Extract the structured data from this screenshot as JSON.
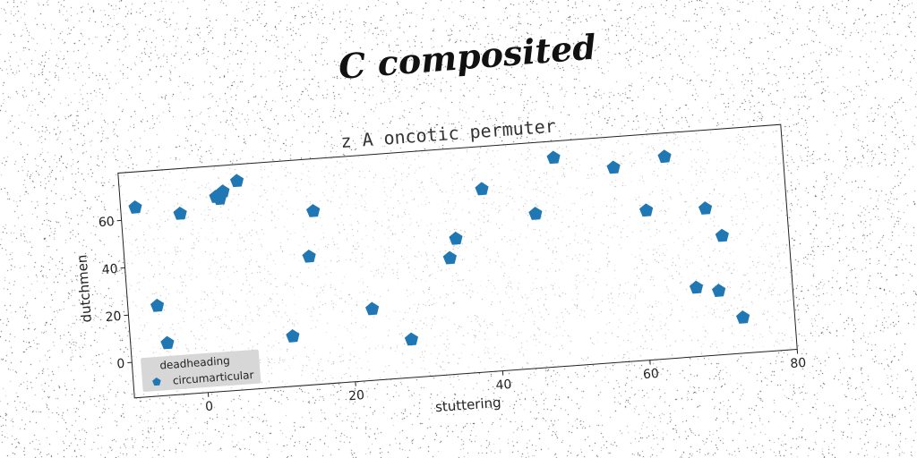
{
  "suptitle": "C composited",
  "chart_data": {
    "type": "scatter",
    "title": "z A oncotic permuter",
    "xlabel": "stuttering",
    "ylabel": "dutchmen",
    "xlim": [
      -10,
      80
    ],
    "ylim": [
      -15,
      80
    ],
    "xticks": [
      0,
      20,
      40,
      60,
      80
    ],
    "yticks": [
      0,
      20,
      40,
      60
    ],
    "grid": false,
    "legend": {
      "title": "deadheading",
      "entries": [
        "circumarticular"
      ],
      "placement": "lower-left"
    },
    "marker": "pentagon",
    "color": "#1f77b4",
    "series": [
      {
        "name": "circumarticular",
        "points": [
          [
            -8,
            65
          ],
          [
            -6,
            23
          ],
          [
            -5,
            7
          ],
          [
            -2,
            61
          ],
          [
            3,
            67
          ],
          [
            3.5,
            66
          ],
          [
            4,
            69
          ],
          [
            6,
            73
          ],
          [
            12,
            6
          ],
          [
            15,
            39
          ],
          [
            16,
            58
          ],
          [
            23,
            15
          ],
          [
            28,
            1
          ],
          [
            34,
            34
          ],
          [
            35,
            42
          ],
          [
            39,
            62
          ],
          [
            46,
            50
          ],
          [
            49,
            73
          ],
          [
            57,
            67
          ],
          [
            61,
            48
          ],
          [
            64,
            70
          ],
          [
            67,
            14
          ],
          [
            69,
            47
          ],
          [
            70,
            12
          ],
          [
            71,
            35
          ],
          [
            73,
            0
          ]
        ]
      }
    ]
  }
}
